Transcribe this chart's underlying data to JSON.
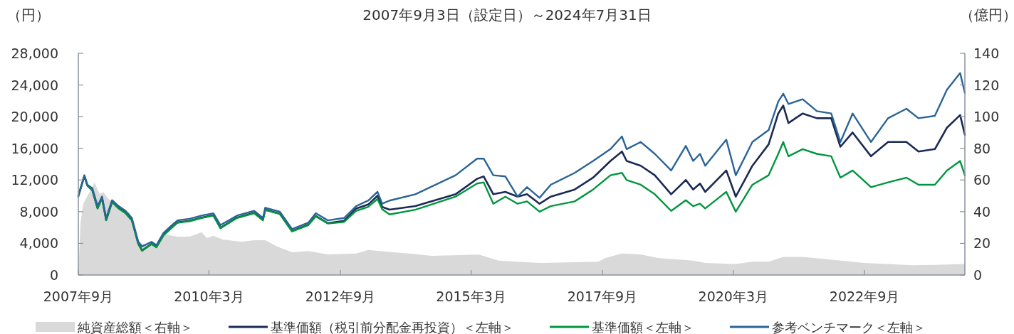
{
  "chart_data": {
    "type": "line",
    "title": "2007年9月3日（設定日）～2024年7月31日",
    "ylabel": "（円）",
    "y2label": "（億円）",
    "xlim": [
      "2007-09-03",
      "2024-07-31"
    ],
    "xticks": [
      {
        "value": "2007-09-03",
        "label": "2007年9月"
      },
      {
        "value": "2010-03",
        "label": "2010年3月"
      },
      {
        "value": "2012-09",
        "label": "2012年9月"
      },
      {
        "value": "2015-03",
        "label": "2015年3月"
      },
      {
        "value": "2017-09",
        "label": "2017年9月"
      },
      {
        "value": "2020-03",
        "label": "2020年3月"
      },
      {
        "value": "2022-09",
        "label": "2022年9月"
      }
    ],
    "ylim": [
      0,
      28000
    ],
    "yticks": [
      0,
      {
        "value": 4000,
        "label": "4,000"
      },
      {
        "value": 8000,
        "label": "8,000"
      },
      {
        "value": 12000,
        "label": "12,000"
      },
      {
        "value": 16000,
        "label": "16,000"
      },
      {
        "value": 20000,
        "label": "20,000"
      },
      {
        "value": 24000,
        "label": "24,000"
      },
      {
        "value": 28000,
        "label": "28,000"
      }
    ],
    "y2lim": [
      0,
      140
    ],
    "y2ticks": [
      0,
      20,
      40,
      60,
      80,
      100,
      120,
      140
    ],
    "grid": false,
    "legend": "bottom",
    "series": [
      {
        "name": "純資産総額＜右軸＞",
        "type": "area",
        "axis": "y2",
        "color": "#d9d9d9",
        "x": [
          "2007-09-03",
          "2007-09-18",
          "2007-10-08",
          "2007-12-25",
          "2008-01-30",
          "2008-02-22",
          "2008-04-01",
          "2008-06-10",
          "2008-08-28",
          "2008-10-18",
          "2008-11-20",
          "2009-02-28",
          "2009-05-03",
          "2009-07-25",
          "2009-10-18",
          "2010-01-08",
          "2010-02-14",
          "2010-04-01",
          "2010-06-05",
          "2010-10-16",
          "2011-01-10",
          "2011-03-28",
          "2011-06-20",
          "2011-10-01",
          "2012-01-22",
          "2012-06-06",
          "2012-12-20",
          "2013-03-14",
          "2013-06-02",
          "2013-12-20",
          "2014-06-02",
          "2015-04-26",
          "2015-09-08",
          "2016-06-17",
          "2017-08-04",
          "2017-09-22",
          "2018-01-15",
          "2018-05-26",
          "2018-09-20",
          "2019-05-26",
          "2019-08-18",
          "2020-03-18",
          "2020-07-12",
          "2020-11-02",
          "2021-02-12",
          "2021-06-27",
          "2021-12-25",
          "2022-08-28",
          "2023-07-26",
          "2024-01-04",
          "2024-07-31"
        ],
        "values": [
          0,
          33,
          45,
          58.5,
          51,
          52.5,
          48,
          43.5,
          39,
          22.4,
          19.7,
          19.7,
          25.6,
          24.2,
          24.2,
          27,
          23.3,
          24.8,
          22.4,
          21,
          22,
          22,
          18,
          14.4,
          15.2,
          13,
          13.6,
          15.8,
          15.2,
          13.6,
          12.1,
          12.9,
          9.1,
          7.6,
          8.4,
          10.8,
          13.6,
          13,
          10.8,
          9.1,
          7.6,
          6.9,
          8.4,
          8.4,
          11.4,
          11.4,
          9.9,
          7.6,
          6.2,
          6.4,
          6.9
        ]
      },
      {
        "name": "基準価額（税引前分配金再投資）＜左軸＞",
        "color": "#1b2a55",
        "values": [
          10000,
          12500,
          11300,
          10700,
          8450,
          9750,
          6950,
          9250,
          8450,
          7850,
          6950,
          3950,
          3100,
          3950,
          3550,
          5050,
          5950,
          6650,
          6850,
          7250,
          7550,
          5950,
          7250,
          7850,
          6950,
          8250,
          7750,
          5550,
          6350,
          7450,
          6550,
          6850,
          8400,
          8900,
          10000,
          8600,
          8250,
          8700,
          10200,
          12150,
          12450,
          10200,
          10500,
          9900,
          10200,
          9000,
          9900,
          10800,
          12300,
          14400,
          15600,
          14400,
          13800,
          12600,
          10200,
          12000,
          10800,
          11550,
          10500,
          13200,
          9900,
          13800,
          16500,
          20400,
          21400,
          19200,
          20400,
          19800,
          19800,
          16200,
          18000,
          15000,
          16800,
          16800,
          15600,
          15900,
          18600,
          20200,
          17700
        ]
      },
      {
        "name": "基準価額＜左軸＞",
        "color": "#00963f",
        "values": [
          10000,
          12500,
          11300,
          10700,
          8400,
          9700,
          6900,
          9200,
          8400,
          7800,
          6900,
          3900,
          3050,
          3900,
          3500,
          5000,
          5900,
          6600,
          6800,
          7200,
          7500,
          5900,
          7200,
          7800,
          6900,
          8200,
          7700,
          5500,
          6300,
          7400,
          6500,
          6700,
          8100,
          8600,
          9600,
          8300,
          7650,
          8250,
          9900,
          11550,
          11700,
          9000,
          9900,
          9000,
          9300,
          8000,
          8700,
          9300,
          10800,
          12600,
          12900,
          12000,
          11400,
          10200,
          8100,
          9450,
          8700,
          9000,
          8400,
          10500,
          8000,
          11400,
          12600,
          15300,
          16800,
          15000,
          15900,
          15300,
          15000,
          12300,
          13200,
          11100,
          11700,
          12300,
          11400,
          11400,
          13200,
          14400,
          12600
        ]
      },
      {
        "name": "参考ベンチマーク＜左軸＞",
        "color": "#2a6496",
        "values": [
          9900,
          12600,
          11400,
          10950,
          8700,
          9900,
          7200,
          9450,
          8700,
          8100,
          7200,
          4200,
          3600,
          4200,
          3770,
          5300,
          6200,
          6900,
          7100,
          7500,
          7800,
          6300,
          7500,
          8100,
          7200,
          8500,
          8000,
          5800,
          6600,
          7800,
          6900,
          7200,
          8700,
          9400,
          10500,
          9000,
          9400,
          10200,
          12600,
          14700,
          14700,
          12600,
          12450,
          9900,
          11100,
          9750,
          11400,
          12900,
          14400,
          15900,
          17500,
          15900,
          16800,
          15300,
          13200,
          16300,
          14400,
          15300,
          13800,
          17100,
          12600,
          16800,
          18300,
          21900,
          22900,
          21600,
          22200,
          20700,
          20400,
          16800,
          20400,
          16800,
          19800,
          21000,
          19800,
          20100,
          23400,
          25500,
          23000
        ]
      }
    ],
    "x": [
      "2007-09-03",
      "2007-10-15",
      "2007-11-05",
      "2007-12-10",
      "2008-01-15",
      "2008-02-15",
      "2008-03-15",
      "2008-04-25",
      "2008-06-10",
      "2008-07-28",
      "2008-09-10",
      "2008-10-25",
      "2008-11-20",
      "2009-01-25",
      "2009-02-28",
      "2009-04-18",
      "2009-06-10",
      "2009-07-25",
      "2009-10-18",
      "2010-01-08",
      "2010-04-01",
      "2010-05-20",
      "2010-09-12",
      "2011-01-10",
      "2011-03-12",
      "2011-03-28",
      "2011-07-08",
      "2011-10-01",
      "2012-01-22",
      "2012-03-14",
      "2012-06-06",
      "2012-09-27",
      "2012-12-20",
      "2013-03-14",
      "2013-05-18",
      "2013-06-20",
      "2013-08-10",
      "2014-02-06",
      "2014-11-13",
      "2015-04-12",
      "2015-05-28",
      "2015-08-03",
      "2015-10-26",
      "2016-01-19",
      "2016-03-25",
      "2016-06-20",
      "2016-09-06",
      "2017-02-20",
      "2017-06-28",
      "2017-10-27",
      "2018-01-15",
      "2018-02-17",
      "2018-05-26",
      "2018-09-01",
      "2018-12-24",
      "2019-04-05",
      "2019-05-26",
      "2019-07-13",
      "2019-08-18",
      "2020-01-12",
      "2020-03-18",
      "2020-07-12",
      "2020-11-02",
      "2021-01-08",
      "2021-02-12",
      "2021-03-20",
      "2021-06-27",
      "2021-10-04",
      "2022-01-12",
      "2022-03-17",
      "2022-06-10",
      "2022-10-16",
      "2023-02-12",
      "2023-06-20",
      "2023-09-12",
      "2024-01-04",
      "2024-03-28",
      "2024-06-28",
      "2024-07-31"
    ]
  }
}
